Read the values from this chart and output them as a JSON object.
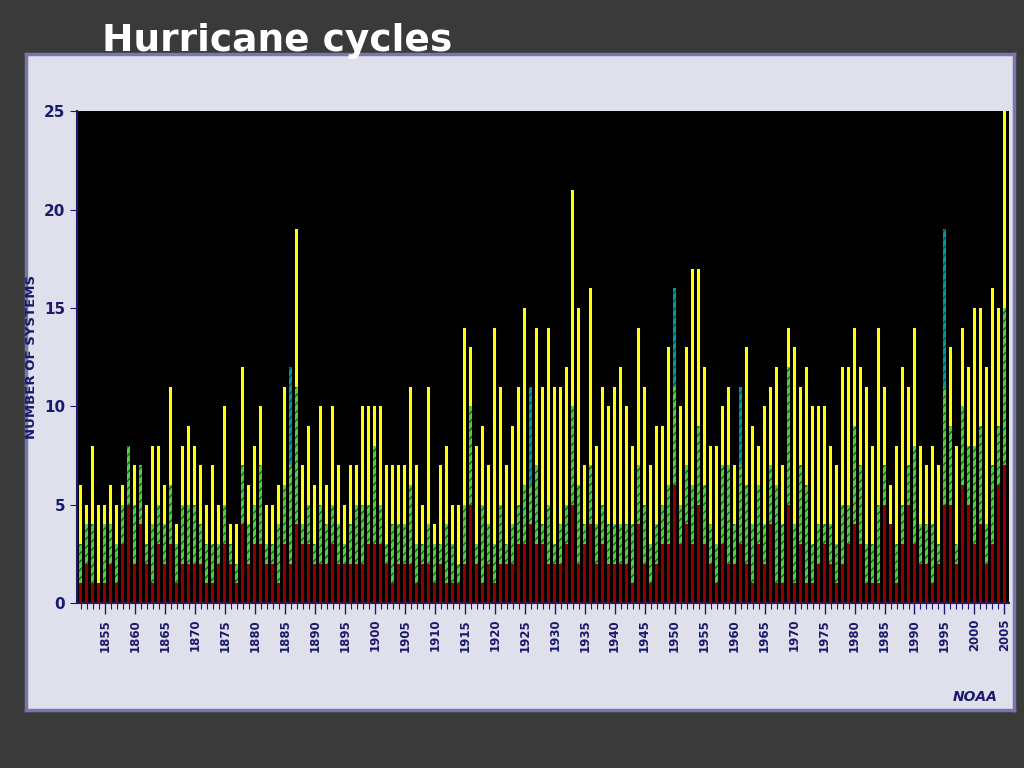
{
  "title": "Hurricane cycles",
  "ylabel": "NUMBER OF SYSTEMS",
  "noaa_label": "NOAA",
  "ylim": [
    0,
    25
  ],
  "yticks": [
    0,
    5,
    10,
    15,
    20,
    25
  ],
  "background_color": "#3a3a3a",
  "plot_bg_color": "#000000",
  "panel_bg_color": "#e0e0ec",
  "title_color": "#ffffff",
  "axis_label_color": "#1a1a6e",
  "tick_label_color": "#1a1a6e",
  "border_color": "#7777aa",
  "bar_color_red": "#8b0000",
  "bar_color_green": "#55cc44",
  "bar_color_yellow": "#ffff00",
  "bar_color_teal": "#009999",
  "hatch_color_green": "#007700",
  "hatch_color_teal": "#005555",
  "bar_width": 0.5,
  "years": [
    1851,
    1852,
    1853,
    1854,
    1855,
    1856,
    1857,
    1858,
    1859,
    1860,
    1861,
    1862,
    1863,
    1864,
    1865,
    1866,
    1867,
    1868,
    1869,
    1870,
    1871,
    1872,
    1873,
    1874,
    1875,
    1876,
    1877,
    1878,
    1879,
    1880,
    1881,
    1882,
    1883,
    1884,
    1885,
    1886,
    1887,
    1888,
    1889,
    1890,
    1891,
    1892,
    1893,
    1894,
    1895,
    1896,
    1897,
    1898,
    1899,
    1900,
    1901,
    1902,
    1903,
    1904,
    1905,
    1906,
    1907,
    1908,
    1909,
    1910,
    1911,
    1912,
    1913,
    1914,
    1915,
    1916,
    1917,
    1918,
    1919,
    1920,
    1921,
    1922,
    1923,
    1924,
    1925,
    1926,
    1927,
    1928,
    1929,
    1930,
    1931,
    1932,
    1933,
    1934,
    1935,
    1936,
    1937,
    1938,
    1939,
    1940,
    1941,
    1942,
    1943,
    1944,
    1945,
    1946,
    1947,
    1948,
    1949,
    1950,
    1951,
    1952,
    1953,
    1954,
    1955,
    1956,
    1957,
    1958,
    1959,
    1960,
    1961,
    1962,
    1963,
    1964,
    1965,
    1966,
    1967,
    1968,
    1969,
    1970,
    1971,
    1972,
    1973,
    1974,
    1975,
    1976,
    1977,
    1978,
    1979,
    1980,
    1981,
    1982,
    1983,
    1984,
    1985,
    1986,
    1987,
    1988,
    1989,
    1990,
    1991,
    1992,
    1993,
    1994,
    1995,
    1996,
    1997,
    1998,
    1999,
    2000,
    2001,
    2002,
    2003,
    2004,
    2005
  ],
  "total": [
    6,
    5,
    8,
    5,
    5,
    6,
    5,
    6,
    8,
    7,
    7,
    5,
    8,
    8,
    6,
    11,
    4,
    8,
    9,
    8,
    7,
    5,
    7,
    5,
    10,
    4,
    4,
    12,
    6,
    8,
    10,
    5,
    5,
    6,
    11,
    12,
    19,
    7,
    9,
    6,
    10,
    6,
    10,
    7,
    5,
    7,
    7,
    10,
    10,
    10,
    10,
    7,
    7,
    7,
    7,
    11,
    7,
    5,
    11,
    4,
    7,
    8,
    5,
    5,
    14,
    13,
    8,
    9,
    7,
    14,
    11,
    7,
    9,
    11,
    15,
    11,
    14,
    11,
    14,
    11,
    11,
    12,
    21,
    15,
    7,
    16,
    8,
    11,
    10,
    11,
    12,
    10,
    8,
    14,
    11,
    7,
    9,
    9,
    13,
    16,
    10,
    13,
    17,
    17,
    12,
    8,
    8,
    10,
    11,
    7,
    11,
    13,
    9,
    8,
    10,
    11,
    12,
    7,
    14,
    13,
    11,
    12,
    10,
    10,
    10,
    8,
    7,
    12,
    12,
    14,
    12,
    11,
    8,
    14,
    11,
    6,
    8,
    12,
    11,
    14,
    8,
    7,
    8,
    7,
    19,
    13,
    8,
    14,
    12,
    15,
    15,
    12,
    16,
    15,
    28
  ],
  "hurricanes": [
    3,
    4,
    4,
    1,
    4,
    4,
    3,
    5,
    8,
    5,
    7,
    3,
    4,
    5,
    4,
    6,
    3,
    5,
    5,
    5,
    4,
    3,
    3,
    3,
    5,
    3,
    2,
    7,
    4,
    5,
    7,
    3,
    3,
    4,
    6,
    7,
    11,
    4,
    5,
    3,
    5,
    4,
    5,
    4,
    3,
    4,
    5,
    5,
    5,
    8,
    5,
    3,
    4,
    4,
    4,
    6,
    3,
    3,
    4,
    3,
    3,
    4,
    3,
    2,
    5,
    10,
    3,
    5,
    4,
    3,
    5,
    3,
    4,
    5,
    6,
    6,
    7,
    4,
    5,
    3,
    4,
    5,
    10,
    6,
    4,
    7,
    4,
    5,
    4,
    4,
    4,
    4,
    4,
    7,
    5,
    3,
    4,
    5,
    6,
    11,
    5,
    7,
    6,
    9,
    6,
    4,
    3,
    7,
    7,
    4,
    7,
    6,
    4,
    6,
    4,
    7,
    6,
    4,
    12,
    4,
    7,
    6,
    3,
    4,
    4,
    4,
    3,
    5,
    5,
    9,
    7,
    3,
    3,
    5,
    7,
    4,
    3,
    5,
    7,
    8,
    4,
    4,
    4,
    3,
    11,
    9,
    3,
    10,
    8,
    8,
    9,
    4,
    7,
    9,
    15
  ],
  "major": [
    1,
    2,
    1,
    1,
    1,
    2,
    1,
    3,
    5,
    2,
    4,
    2,
    1,
    3,
    2,
    3,
    1,
    2,
    2,
    2,
    2,
    1,
    1,
    2,
    3,
    2,
    1,
    4,
    2,
    3,
    3,
    2,
    2,
    1,
    3,
    2,
    4,
    3,
    3,
    2,
    2,
    2,
    3,
    2,
    2,
    2,
    2,
    2,
    3,
    3,
    3,
    2,
    1,
    2,
    2,
    2,
    1,
    2,
    2,
    1,
    2,
    1,
    1,
    1,
    2,
    5,
    2,
    1,
    2,
    1,
    2,
    2,
    2,
    3,
    3,
    4,
    3,
    3,
    2,
    2,
    2,
    3,
    5,
    2,
    3,
    4,
    2,
    3,
    2,
    2,
    2,
    2,
    1,
    4,
    2,
    1,
    2,
    3,
    3,
    6,
    3,
    4,
    3,
    5,
    3,
    2,
    1,
    3,
    2,
    2,
    3,
    2,
    1,
    3,
    2,
    4,
    1,
    1,
    5,
    1,
    3,
    1,
    1,
    2,
    3,
    2,
    1,
    2,
    3,
    4,
    3,
    1,
    1,
    1,
    5,
    6,
    1,
    3,
    5,
    3,
    2,
    2,
    1,
    2,
    5,
    5,
    2,
    6,
    5,
    3,
    4,
    2,
    3,
    6,
    7
  ],
  "teal_indices": [
    35,
    75,
    99,
    110,
    144
  ]
}
